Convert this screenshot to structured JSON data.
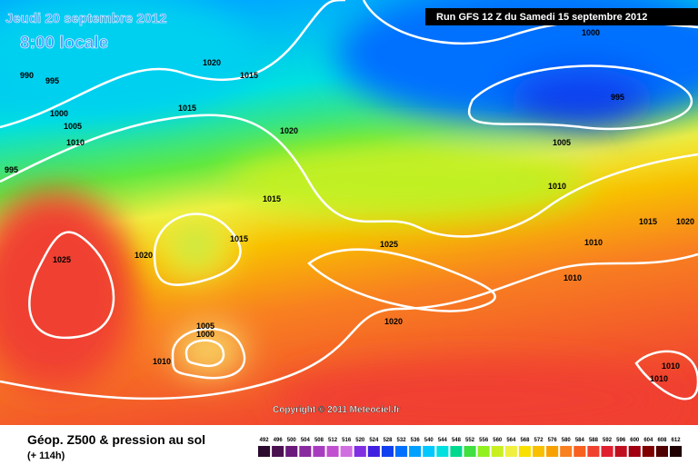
{
  "header": {
    "date": "Jeudi 20 septembre 2012",
    "time": "8:00 locale",
    "run": "Run GFS 12 Z du Samedi 15 septembre 2012"
  },
  "copyright": "Copyright © 2011 Meteociel.fr",
  "footer": {
    "title": "Géop. Z500 & pression au sol",
    "lead": "(+ 114h)"
  },
  "isobar_labels": [
    990,
    995,
    1000,
    1005,
    1010,
    995,
    1020,
    1015,
    1015,
    1020,
    1015,
    1015,
    1020,
    1025,
    1025,
    1005,
    1000,
    1010,
    1020,
    1000,
    995,
    1005,
    1010,
    1015,
    1020,
    1010,
    1010,
    1010,
    1010
  ],
  "legend": {
    "values": [
      492,
      496,
      500,
      504,
      508,
      512,
      516,
      520,
      524,
      528,
      532,
      536,
      540,
      544,
      548,
      552,
      556,
      560,
      564,
      568,
      572,
      576,
      580,
      584,
      588,
      592,
      596,
      600,
      604,
      608,
      612
    ],
    "colors": [
      "#2a0a2e",
      "#4a1050",
      "#6a1a7a",
      "#8a2aa0",
      "#a83cc0",
      "#c050d0",
      "#d070e0",
      "#8030e0",
      "#4020e0",
      "#1040f0",
      "#0070ff",
      "#00a0ff",
      "#00c8ff",
      "#00e0e0",
      "#00d890",
      "#40e040",
      "#90f020",
      "#c8f020",
      "#f0f040",
      "#f8e000",
      "#f8c000",
      "#f8a000",
      "#f88020",
      "#f86020",
      "#f04030",
      "#e02030",
      "#c01020",
      "#a00010",
      "#800000",
      "#500000",
      "#200000"
    ]
  }
}
